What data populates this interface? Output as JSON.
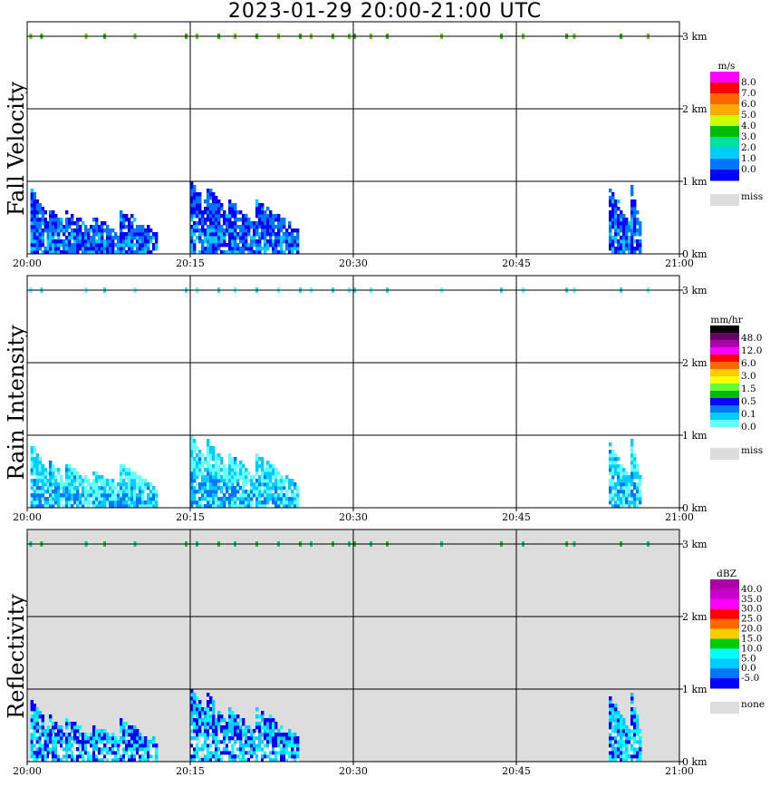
{
  "title": "2023-01-29  20:00-21:00 UTC",
  "chart_data": [
    {
      "type": "heatmap",
      "title": "Fall Velocity",
      "x_ticks": [
        "20:00",
        "20:15",
        "20:30",
        "20:45",
        "21:00"
      ],
      "y_ticks": [
        "0 km",
        "1 km",
        "2 km",
        "3 km"
      ],
      "background": "#ffffff",
      "colorbar": {
        "unit": "m/s",
        "labels": [
          "8.0",
          "7.0",
          "6.0",
          "5.0",
          "4.0",
          "3.0",
          "2.0",
          "1.0",
          "0.0"
        ],
        "colors": [
          "#ff00ff",
          "#ff0000",
          "#ff6600",
          "#ffaa00",
          "#ccff00",
          "#00bb00",
          "#00e0a0",
          "#00ccff",
          "#0077ff",
          "#0000ff"
        ],
        "miss_label": "miss",
        "miss_color": "#dddddd"
      },
      "lowlevel_colors": [
        "#0000ff",
        "#0077ff",
        "#00ccff"
      ],
      "highlevel_colors": [
        "#66cc22",
        "#33bb00"
      ]
    },
    {
      "type": "heatmap",
      "title": "Rain Intensity",
      "x_ticks": [
        "20:00",
        "20:15",
        "20:30",
        "20:45",
        "21:00"
      ],
      "y_ticks": [
        "0 km",
        "1 km",
        "2 km",
        "3 km"
      ],
      "background": "#ffffff",
      "colorbar": {
        "unit": "mm/hr",
        "labels": [
          "48.0",
          "12.0",
          "6.0",
          "3.0",
          "1.5",
          "0.5",
          "0.1",
          "0.0"
        ],
        "colors": [
          "#000000",
          "#660066",
          "#aa00aa",
          "#ff00ff",
          "#ff0000",
          "#ff6600",
          "#ffcc00",
          "#ffff00",
          "#66ff33",
          "#00bb00",
          "#0000ff",
          "#0077ff",
          "#00ccff",
          "#66ffff",
          "#ffffff"
        ],
        "miss_label": "miss",
        "miss_color": "#dddddd"
      },
      "lowlevel_colors": [
        "#66ffff",
        "#00ccff",
        "#0077ff"
      ],
      "highlevel_colors": [
        "#66ffff",
        "#33e0e0"
      ]
    },
    {
      "type": "heatmap",
      "title": "Reflectivity",
      "x_ticks": [
        "20:00",
        "20:15",
        "20:30",
        "20:45",
        "21:00"
      ],
      "y_ticks": [
        "0 km",
        "1 km",
        "2 km",
        "3 km"
      ],
      "background": "#dddddd",
      "colorbar": {
        "unit": "dBZ",
        "labels": [
          "40.0",
          "35.0",
          "30.0",
          "25.0",
          "20.0",
          "15.0",
          "10.0",
          "5.0",
          "0.0",
          "-5.0"
        ],
        "colors": [
          "#aa00aa",
          "#cc00cc",
          "#ff00ff",
          "#ff0000",
          "#ff6600",
          "#ffcc00",
          "#00cc00",
          "#00ffff",
          "#00ccff",
          "#0077ff",
          "#0000ff"
        ],
        "miss_label": "none",
        "miss_color": "#dddddd"
      },
      "lowlevel_colors": [
        "#0000ff",
        "#00ccff",
        "#00ffff",
        "#ffffff"
      ],
      "highlevel_colors": [
        "#00cc88",
        "#22bb44"
      ]
    }
  ]
}
